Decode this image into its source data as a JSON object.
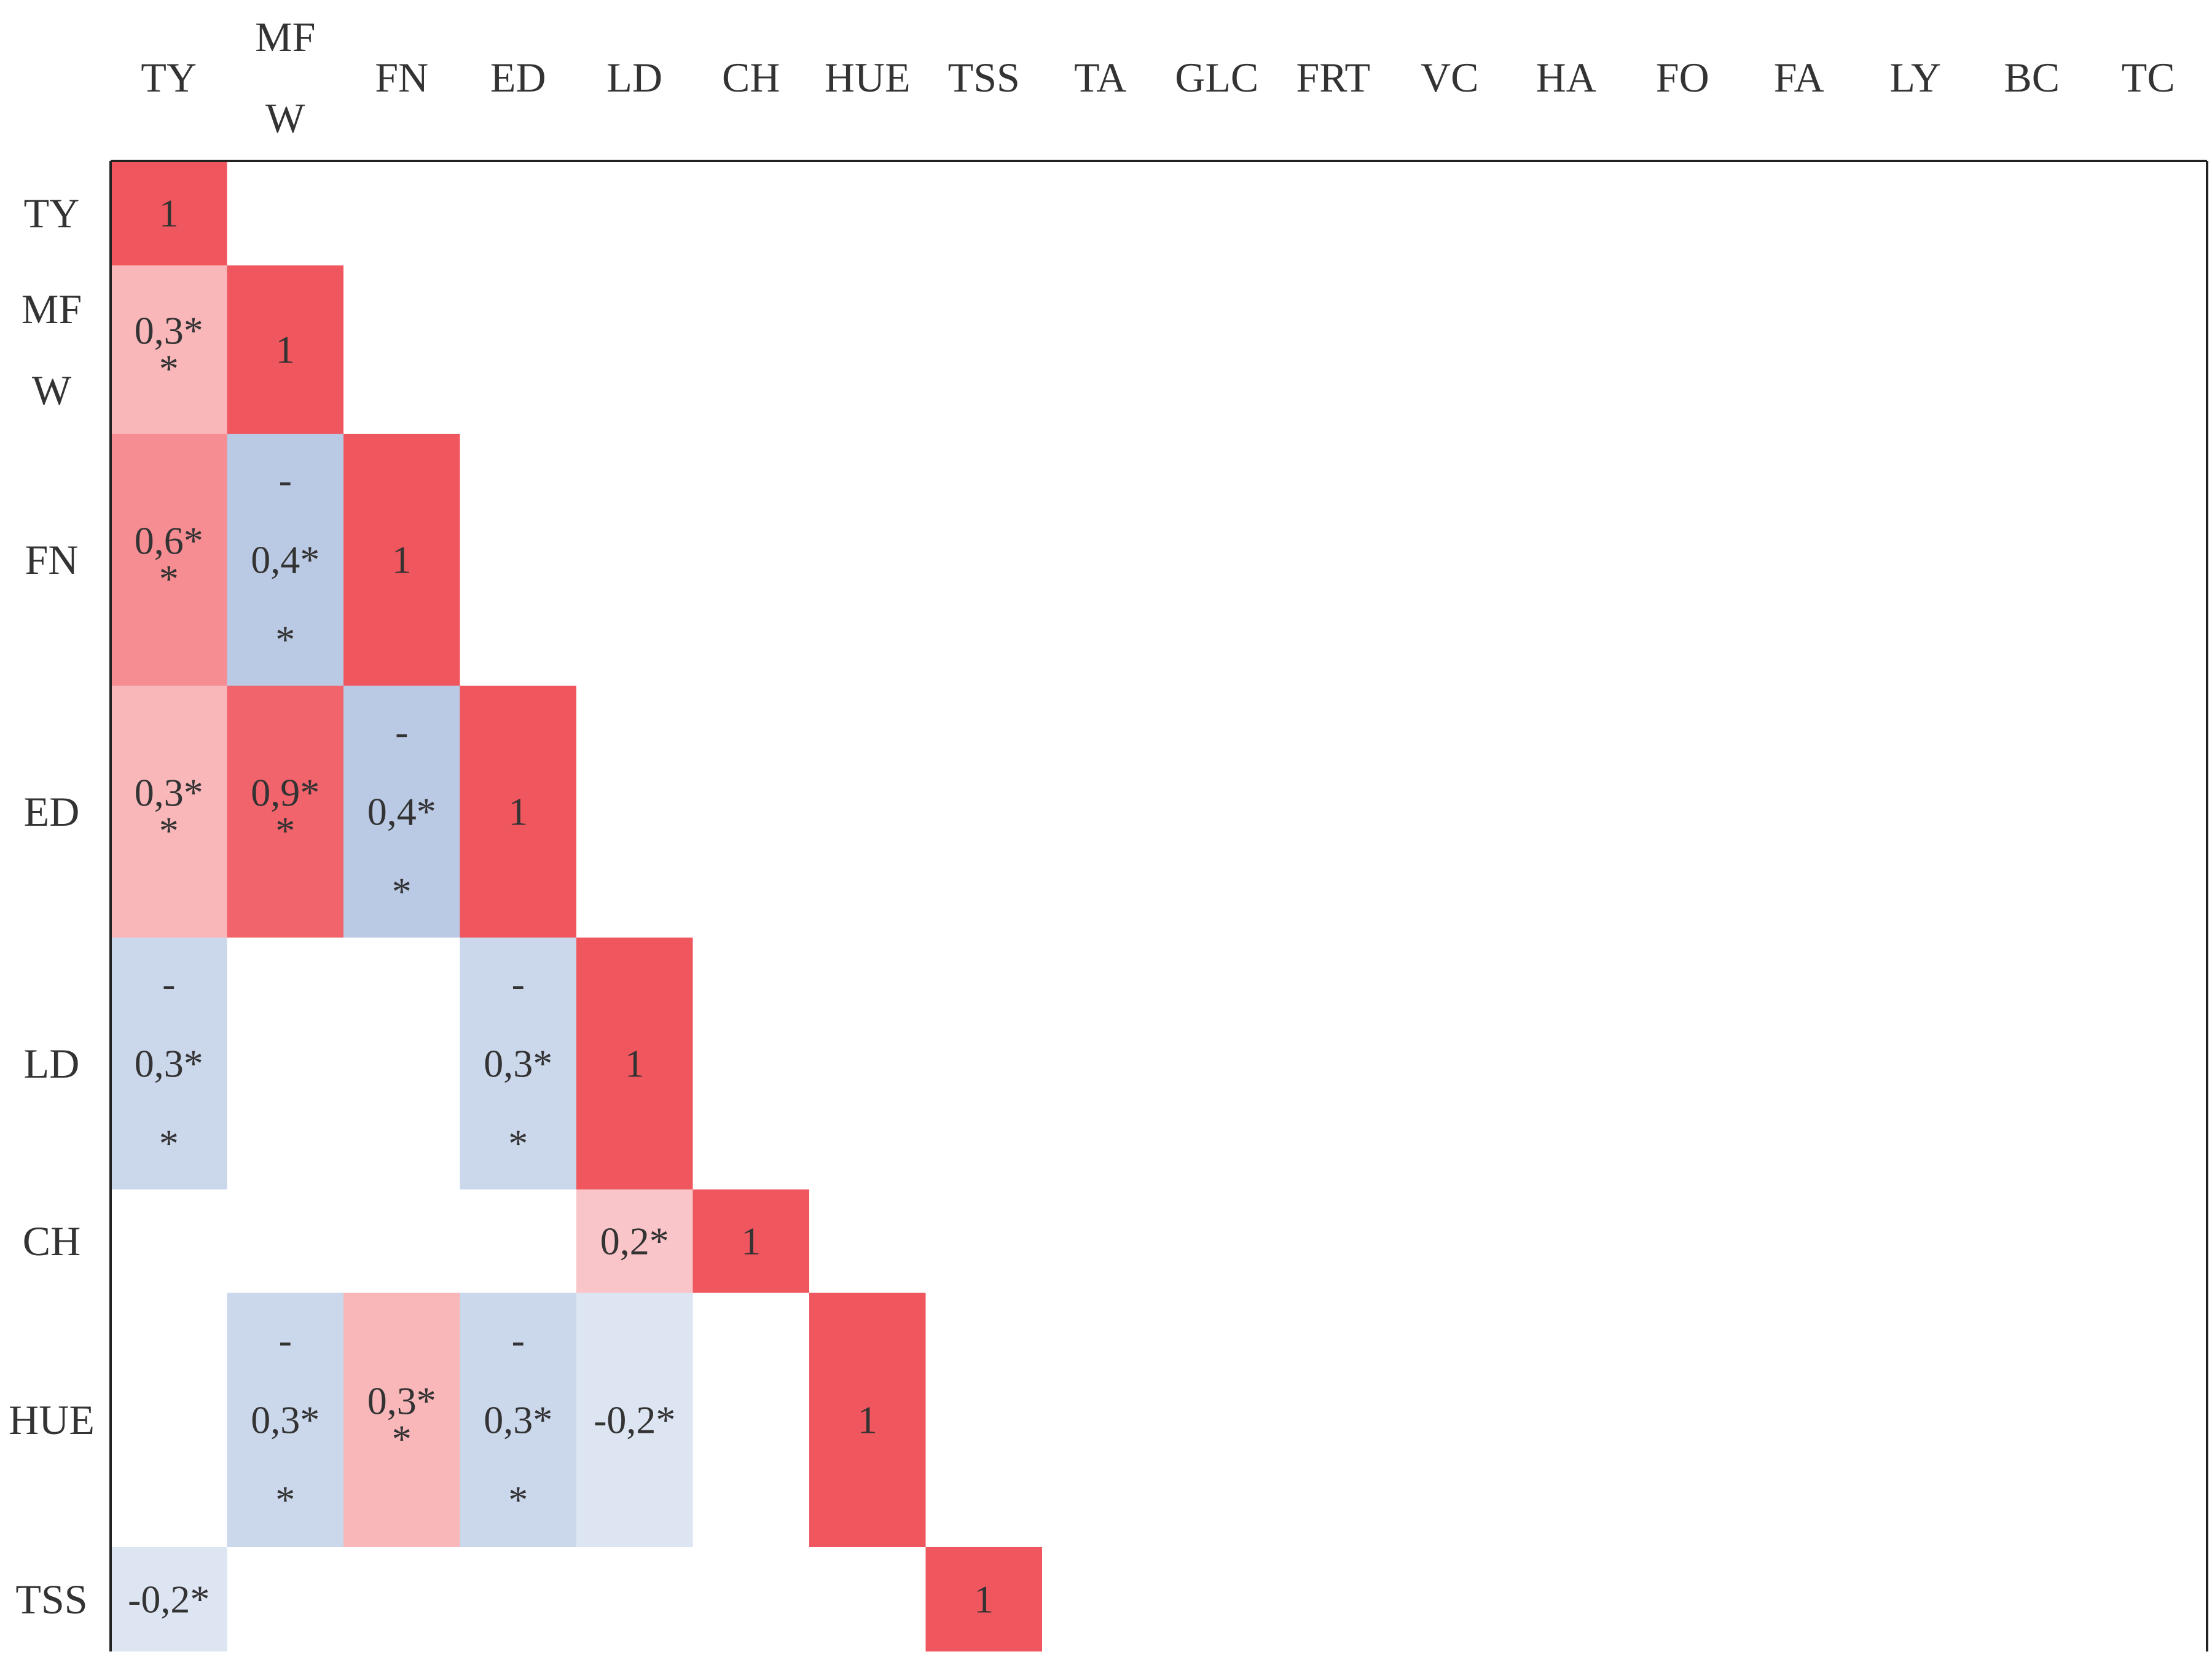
{
  "chart_data": {
    "type": "heatmap",
    "title": "",
    "xlabel": "",
    "ylabel": "",
    "col_labels": [
      [
        "TY"
      ],
      [
        "MF",
        "W"
      ],
      [
        "FN"
      ],
      [
        "ED"
      ],
      [
        "LD"
      ],
      [
        "CH"
      ],
      [
        "HUE"
      ],
      [
        "TSS"
      ],
      [
        "TA"
      ],
      [
        "GLC"
      ],
      [
        "FRT"
      ],
      [
        "VC"
      ],
      [
        "HA"
      ],
      [
        "FO"
      ],
      [
        "FA"
      ],
      [
        "LY"
      ],
      [
        "BC"
      ],
      [
        "TC"
      ]
    ],
    "row_labels": [
      [
        "TY"
      ],
      [
        "MF",
        "W"
      ],
      [
        "FN"
      ],
      [
        "ED"
      ],
      [
        "LD"
      ],
      [
        "CH"
      ],
      [
        "HUE"
      ],
      [
        "TSS"
      ]
    ],
    "color_scale": {
      "negative": "#4a72b8",
      "zero": "#ffffff",
      "positive": "#f0565e"
    },
    "cells": [
      {
        "row": 0,
        "col": 0,
        "value": 1,
        "lines": [
          "1"
        ]
      },
      {
        "row": 1,
        "col": 0,
        "value": 0.3,
        "lines": [
          "0,3*",
          "*"
        ]
      },
      {
        "row": 1,
        "col": 1,
        "value": 1,
        "lines": [
          "1"
        ]
      },
      {
        "row": 2,
        "col": 0,
        "value": 0.6,
        "lines": [
          "0,6*",
          "*"
        ]
      },
      {
        "row": 2,
        "col": 1,
        "value": -0.4,
        "lines": [
          "-",
          "0,4*",
          "*"
        ]
      },
      {
        "row": 2,
        "col": 2,
        "value": 1,
        "lines": [
          "1"
        ]
      },
      {
        "row": 3,
        "col": 0,
        "value": 0.3,
        "lines": [
          "0,3*",
          "*"
        ]
      },
      {
        "row": 3,
        "col": 1,
        "value": 0.9,
        "lines": [
          "0,9*",
          "*"
        ]
      },
      {
        "row": 3,
        "col": 2,
        "value": -0.4,
        "lines": [
          "-",
          "0,4*",
          "*"
        ]
      },
      {
        "row": 3,
        "col": 3,
        "value": 1,
        "lines": [
          "1"
        ]
      },
      {
        "row": 4,
        "col": 0,
        "value": -0.3,
        "lines": [
          "-",
          "0,3*",
          "*"
        ]
      },
      {
        "row": 4,
        "col": 3,
        "value": -0.3,
        "lines": [
          "-",
          "0,3*",
          "*"
        ]
      },
      {
        "row": 4,
        "col": 4,
        "value": 1,
        "lines": [
          "1"
        ]
      },
      {
        "row": 5,
        "col": 4,
        "value": 0.2,
        "lines": [
          "0,2*"
        ]
      },
      {
        "row": 5,
        "col": 5,
        "value": 1,
        "lines": [
          "1"
        ]
      },
      {
        "row": 6,
        "col": 1,
        "value": -0.3,
        "lines": [
          "-",
          "0,3*",
          "*"
        ]
      },
      {
        "row": 6,
        "col": 2,
        "value": 0.3,
        "lines": [
          "0,3*",
          "*"
        ]
      },
      {
        "row": 6,
        "col": 3,
        "value": -0.3,
        "lines": [
          "-",
          "0,3*",
          "*"
        ]
      },
      {
        "row": 6,
        "col": 4,
        "value": -0.2,
        "lines": [
          "-0,2*"
        ]
      },
      {
        "row": 6,
        "col": 6,
        "value": 1,
        "lines": [
          "1"
        ]
      },
      {
        "row": 7,
        "col": 0,
        "value": -0.2,
        "lines": [
          "-0,2*"
        ]
      },
      {
        "row": 7,
        "col": 7,
        "value": 1,
        "lines": [
          "1"
        ]
      }
    ]
  }
}
